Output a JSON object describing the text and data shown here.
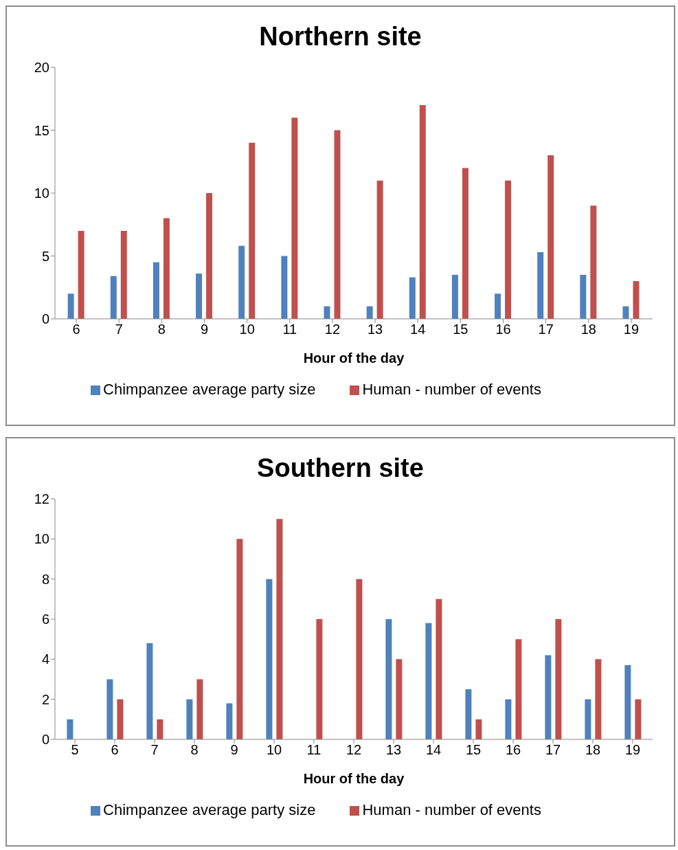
{
  "chart_data": [
    {
      "type": "bar",
      "title": "Northern site",
      "xlabel": "Hour of the day",
      "categories": [
        "6",
        "7",
        "8",
        "9",
        "10",
        "11",
        "12",
        "13",
        "14",
        "15",
        "16",
        "17",
        "18",
        "19"
      ],
      "series": [
        {
          "name": "Chimpanzee average party size",
          "color": "#4f81bd",
          "values": [
            2,
            3.4,
            4.5,
            3.6,
            5.8,
            5,
            1,
            1,
            3.3,
            3.5,
            2,
            5.3,
            3.5,
            1
          ]
        },
        {
          "name": "Human - number of events",
          "color": "#c0504d",
          "values": [
            7,
            7,
            8,
            10,
            14,
            16,
            15,
            11,
            17,
            12,
            11,
            13,
            9,
            3
          ]
        }
      ],
      "ylim": [
        0,
        20
      ],
      "yticks": [
        0,
        5,
        10,
        15,
        20
      ],
      "grid": false,
      "legend": "bottom"
    },
    {
      "type": "bar",
      "title": "Southern site",
      "xlabel": "Hour of the day",
      "categories": [
        "5",
        "6",
        "7",
        "8",
        "9",
        "10",
        "11",
        "12",
        "13",
        "14",
        "15",
        "16",
        "17",
        "18",
        "19"
      ],
      "series": [
        {
          "name": "Chimpanzee average party size",
          "color": "#4f81bd",
          "values": [
            1,
            3,
            4.8,
            2,
            1.8,
            8,
            null,
            null,
            6,
            5.8,
            2.5,
            2,
            4.2,
            2,
            3.7
          ]
        },
        {
          "name": "Human - number of events",
          "color": "#c0504d",
          "values": [
            null,
            2,
            1,
            3,
            10,
            11,
            6,
            8,
            4,
            7,
            1,
            5,
            6,
            4,
            2
          ]
        }
      ],
      "ylim": [
        0,
        12
      ],
      "yticks": [
        0,
        2,
        4,
        6,
        8,
        10,
        12
      ],
      "grid": false,
      "legend": "bottom"
    }
  ]
}
